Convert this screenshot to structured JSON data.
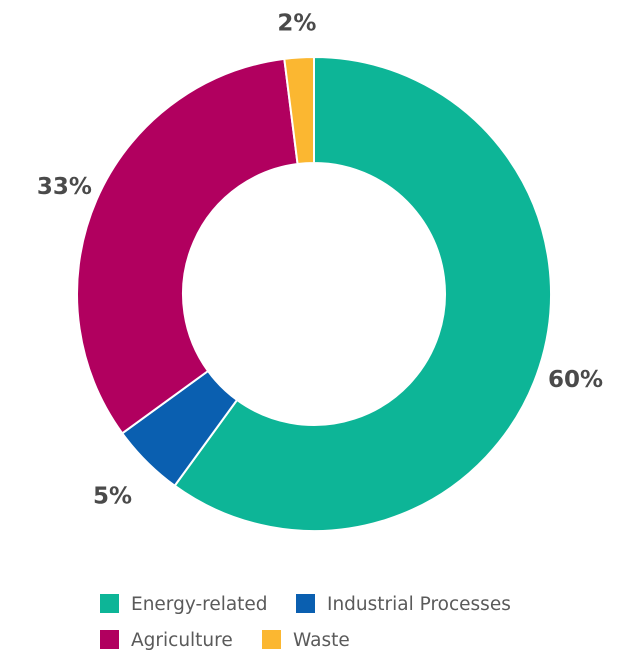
{
  "chart_data": {
    "type": "pie",
    "variant": "donut",
    "title": "",
    "categories": [
      "Energy-related",
      "Industrial Processes",
      "Agriculture",
      "Waste"
    ],
    "values": [
      60,
      5,
      33,
      2
    ],
    "value_labels": [
      "60%",
      "5%",
      "33%",
      "2%"
    ],
    "colors": [
      "#0db597",
      "#0a5fb0",
      "#b1005f",
      "#fbb731"
    ],
    "legend": {
      "position": "bottom",
      "entries": [
        {
          "label": "Energy-related",
          "color": "#0db597"
        },
        {
          "label": "Industrial Processes",
          "color": "#0a5fb0"
        },
        {
          "label": "Agriculture",
          "color": "#b1005f"
        },
        {
          "label": "Waste",
          "color": "#fbb731"
        }
      ]
    }
  }
}
